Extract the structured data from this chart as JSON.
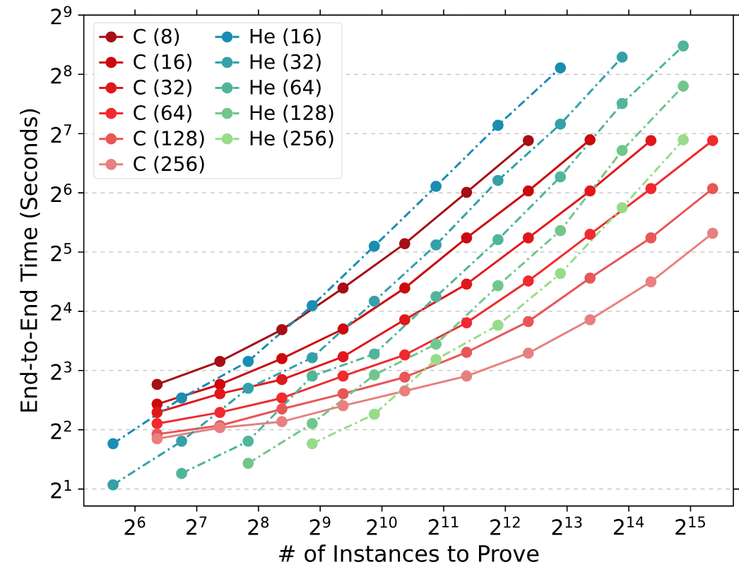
{
  "chart_data": {
    "type": "line",
    "xlabel": "# of Instances to Prove",
    "ylabel": "End-to-End Time (Seconds)",
    "log": "xy",
    "grid": "y",
    "marker": "circle",
    "legend": "top left",
    "xlim": [
      36,
      53000
    ],
    "ylim": [
      1.64,
      512
    ],
    "xticks": [
      {
        "value": 64,
        "label": "2$^{6}$"
      },
      {
        "value": 128,
        "label": "2$^{7}$"
      },
      {
        "value": 256,
        "label": "2$^{8}$"
      },
      {
        "value": 512,
        "label": "2$^{9}$"
      },
      {
        "value": 1024,
        "label": "2$^{10}$"
      },
      {
        "value": 2048,
        "label": "2$^{11}$"
      },
      {
        "value": 4096,
        "label": "2$^{12}$"
      },
      {
        "value": 8192,
        "label": "2$^{13}$"
      },
      {
        "value": 16384,
        "label": "2$^{14}$"
      },
      {
        "value": 32768,
        "label": "2$^{15}$"
      }
    ],
    "yticks": [
      {
        "value": 2,
        "label": "2$^{1}$"
      },
      {
        "value": 4,
        "label": "2$^{2}$"
      },
      {
        "value": 8,
        "label": "2$^{3}$"
      },
      {
        "value": 16,
        "label": "2$^{4}$"
      },
      {
        "value": 32,
        "label": "2$^{5}$"
      },
      {
        "value": 64,
        "label": "2$^{6}$"
      },
      {
        "value": 128,
        "label": "2$^{7}$"
      },
      {
        "value": 256,
        "label": "2$^{8}$"
      },
      {
        "value": 512,
        "label": "2$^{9}$"
      }
    ],
    "series": [
      {
        "name": "C (8)",
        "color": "#a50f15",
        "line_style": "solid",
        "x": [
          82,
          166,
          333,
          662,
          1323,
          2650,
          5300
        ],
        "values": [
          6.8,
          8.9,
          12.9,
          21.0,
          35.3,
          64.4,
          118
        ]
      },
      {
        "name": "C (16)",
        "color": "#cc0a0e",
        "line_style": "solid",
        "x": [
          82,
          166,
          333,
          662,
          1323,
          2650,
          5300,
          10600
        ],
        "values": [
          5.4,
          6.8,
          9.2,
          13.0,
          21.0,
          37.8,
          65.4,
          119
        ]
      },
      {
        "name": "C (32)",
        "color": "#e0181c",
        "line_style": "solid",
        "x": [
          82,
          166,
          333,
          662,
          1323,
          2650,
          5300,
          10600,
          21000
        ],
        "values": [
          4.9,
          6.1,
          7.2,
          9.4,
          14.5,
          22.0,
          37.8,
          65.4,
          118
        ]
      },
      {
        "name": "C (64)",
        "color": "#f02a2f",
        "line_style": "solid",
        "x": [
          82,
          166,
          333,
          662,
          1323,
          2650,
          5300,
          10600,
          21000,
          42000
        ],
        "values": [
          4.3,
          4.9,
          5.8,
          7.5,
          9.6,
          14.0,
          22.8,
          39.4,
          67.2,
          118
        ]
      },
      {
        "name": "C (128)",
        "color": "#e85656",
        "line_style": "solid",
        "x": [
          82,
          166,
          333,
          662,
          1323,
          2650,
          5300,
          10600,
          21000,
          42000
        ],
        "values": [
          3.8,
          4.2,
          5.1,
          6.1,
          7.4,
          9.9,
          14.2,
          23.6,
          37.8,
          67.2
        ]
      },
      {
        "name": "C (256)",
        "color": "#e88080",
        "line_style": "solid",
        "x": [
          82,
          166,
          333,
          662,
          1323,
          2650,
          5300,
          10600,
          21000,
          42000
        ],
        "values": [
          3.6,
          4.1,
          4.4,
          5.3,
          6.3,
          7.5,
          9.8,
          14.5,
          22.6,
          39.9
        ]
      },
      {
        "name": "He (16)",
        "color": "#1a8db3",
        "line_style": "dashdot",
        "x": [
          50,
          108,
          228,
          468,
          940,
          1880,
          3770,
          7600
        ],
        "values": [
          3.4,
          5.8,
          8.9,
          17.1,
          34.3,
          69.1,
          141,
          276
        ]
      },
      {
        "name": "He (32)",
        "color": "#35a0a8",
        "line_style": "dashdot",
        "x": [
          50,
          108,
          228,
          468,
          940,
          1880,
          3770,
          7600,
          15200
        ],
        "values": [
          2.1,
          3.5,
          6.5,
          9.3,
          18.0,
          34.8,
          74.0,
          143,
          313
        ]
      },
      {
        "name": "He (64)",
        "color": "#50b59a",
        "line_style": "dashdot",
        "x": [
          108,
          228,
          468,
          940,
          1880,
          3770,
          7600,
          15200,
          30200
        ],
        "values": [
          2.4,
          3.5,
          7.5,
          9.7,
          19.0,
          37.0,
          77.2,
          182,
          357
        ]
      },
      {
        "name": "He (128)",
        "color": "#72c68c",
        "line_style": "dashdot",
        "x": [
          228,
          468,
          940,
          1880,
          3770,
          7600,
          15200,
          30200
        ],
        "values": [
          2.7,
          4.3,
          7.6,
          10.9,
          21.6,
          41.1,
          105,
          223
        ]
      },
      {
        "name": "He (256)",
        "color": "#98dc8a",
        "line_style": "dashdot",
        "x": [
          468,
          940,
          1880,
          3770,
          7600,
          15200,
          30200
        ],
        "values": [
          3.4,
          4.8,
          9.1,
          13.6,
          24.9,
          53.8,
          119
        ]
      }
    ]
  }
}
